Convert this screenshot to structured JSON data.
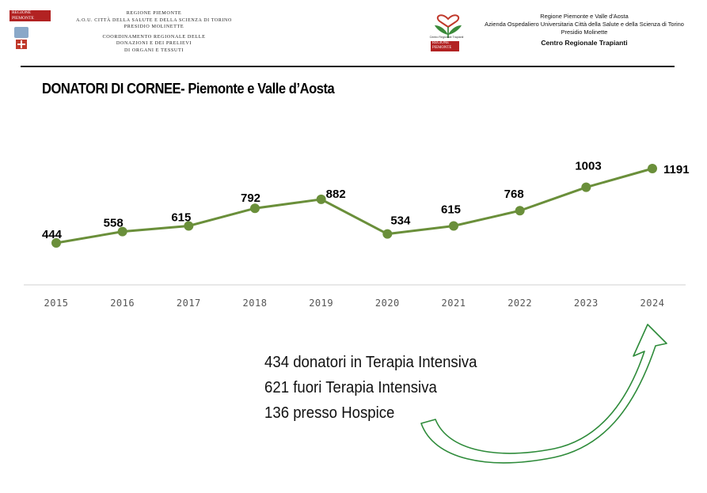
{
  "header": {
    "left": {
      "logo_text": [
        "REGIONE",
        "PIEMONTE"
      ],
      "lines": [
        "REGIONE PIEMONTE",
        "A.O.U. CITTÀ DELLA SALUTE E DELLA SCIENZA DI TORINO",
        "PRESIDIO MOLINETTE",
        "COORDINAMENTO REGIONALE DELLE",
        "DONAZIONI E DEI PRELIEVI",
        "DI ORGANI E TESSUTI"
      ]
    },
    "right": {
      "logo_caption": "Centro Regionale Trapianti",
      "logo_text": [
        "REGIONE",
        "PIEMONTE"
      ],
      "lines": [
        "Regione Piemonte e Valle d'Aosta",
        "Azienda Ospedaliero Universitaria Città della Salute e della Scienza di Torino",
        "Presidio Molinette"
      ],
      "bold_line": "Centro Regionale Trapianti"
    }
  },
  "chart_data": {
    "type": "line",
    "title": "DONATORI DI CORNEE- Piemonte e Valle d’Aosta",
    "xlabel": "",
    "ylabel": "",
    "categories": [
      "2015",
      "2016",
      "2017",
      "2018",
      "2019",
      "2020",
      "2021",
      "2022",
      "2023",
      "2024"
    ],
    "values": [
      444,
      558,
      615,
      792,
      882,
      534,
      615,
      768,
      1003,
      1191
    ],
    "data_labels": [
      "444",
      "558",
      "615",
      "792",
      "882",
      "534",
      "615",
      "768",
      "1003",
      "1191"
    ],
    "color": "#6a8f3a",
    "grid": false,
    "legend": "none"
  },
  "note": {
    "lines": [
      "434 donatori in Terapia Intensiva",
      "621 fuori Terapia Intensiva",
      "136 presso Hospice"
    ]
  },
  "arrow_color": "#2e8b3a"
}
